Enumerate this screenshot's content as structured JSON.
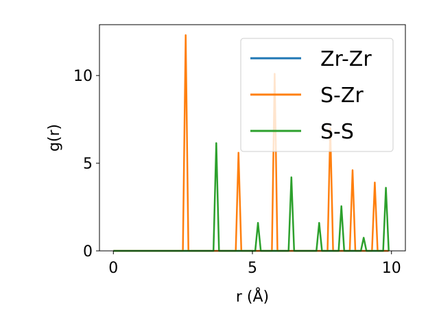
{
  "chart_data": {
    "type": "line",
    "xlabel": "r (Å)",
    "ylabel": "g(r)",
    "xlim": [
      -0.5,
      10.5
    ],
    "ylim": [
      0,
      12.9
    ],
    "xticks": [
      0,
      5,
      10
    ],
    "yticks": [
      0,
      5,
      10
    ],
    "grid": false,
    "legend_position": "top-right",
    "series": [
      {
        "name": "Zr-Zr",
        "color": "#1f77b4",
        "peaks": []
      },
      {
        "name": "S-Zr",
        "color": "#ff7f0e",
        "peaks": [
          [
            2.6,
            12.3
          ],
          [
            4.5,
            5.6
          ],
          [
            5.8,
            10.1
          ],
          [
            7.8,
            7.0
          ],
          [
            8.6,
            4.6
          ],
          [
            9.4,
            3.9
          ]
        ]
      },
      {
        "name": "S-S",
        "color": "#2ca02c",
        "peaks": [
          [
            3.7,
            6.15
          ],
          [
            5.2,
            1.6
          ],
          [
            6.4,
            4.2
          ],
          [
            7.4,
            1.6
          ],
          [
            8.2,
            2.55
          ],
          [
            9.0,
            0.75
          ],
          [
            9.8,
            3.6
          ]
        ]
      }
    ],
    "x_range": [
      0,
      9.9
    ],
    "peak_halfwidth": 0.1
  }
}
